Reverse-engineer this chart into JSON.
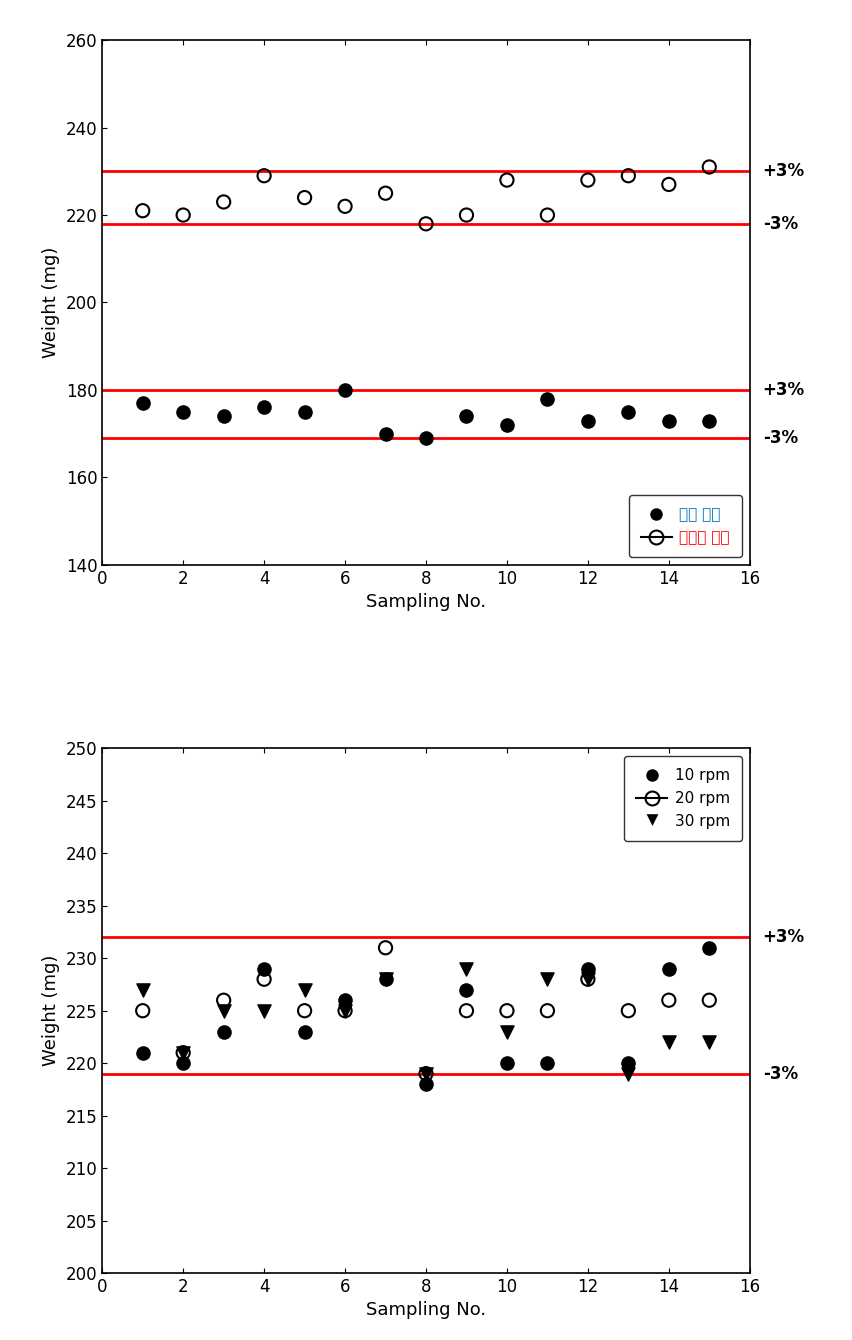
{
  "plot1": {
    "ylabel": "Weight (mg)",
    "xlabel": "Sampling No.",
    "ylim": [
      140,
      260
    ],
    "yticks": [
      140,
      160,
      180,
      200,
      220,
      240,
      260
    ],
    "xlim": [
      0,
      16
    ],
    "xticks": [
      0,
      2,
      4,
      6,
      8,
      10,
      12,
      14,
      16
    ],
    "hline_upper": 230,
    "hline_lower": 218,
    "hline_upper2": 180,
    "hline_lower2": 169,
    "series1_x": [
      1,
      2,
      3,
      4,
      5,
      6,
      7,
      8,
      9,
      10,
      11,
      12,
      13,
      14,
      15
    ],
    "series1_y": [
      177,
      175,
      174,
      176,
      175,
      180,
      170,
      169,
      174,
      172,
      178,
      173,
      175,
      173,
      173
    ],
    "series2_x": [
      1,
      2,
      3,
      4,
      5,
      6,
      7,
      8,
      9,
      10,
      11,
      12,
      13,
      14,
      15
    ],
    "series2_y": [
      221,
      220,
      223,
      229,
      224,
      222,
      225,
      218,
      220,
      228,
      220,
      228,
      229,
      227,
      231
    ],
    "label1": "알웈 저울",
    "label2": "동에물 저울"
  },
  "plot2": {
    "ylabel": "Weight (mg)",
    "xlabel": "Sampling No.",
    "ylim": [
      200,
      250
    ],
    "yticks": [
      200,
      205,
      210,
      215,
      220,
      225,
      230,
      235,
      240,
      245,
      250
    ],
    "xlim": [
      0,
      16
    ],
    "xticks": [
      0,
      2,
      4,
      6,
      8,
      10,
      12,
      14,
      16
    ],
    "hline_upper": 232,
    "hline_lower": 219,
    "series1_x": [
      1,
      2,
      3,
      4,
      5,
      6,
      7,
      8,
      9,
      10,
      11,
      12,
      13,
      14,
      15
    ],
    "series1_y": [
      221,
      220,
      223,
      229,
      223,
      226,
      228,
      218,
      227,
      220,
      220,
      229,
      220,
      229,
      231
    ],
    "series2_x": [
      1,
      2,
      3,
      4,
      5,
      6,
      7,
      8,
      9,
      10,
      11,
      12,
      13,
      14,
      15
    ],
    "series2_y": [
      225,
      221,
      226,
      228,
      225,
      225,
      231,
      219,
      225,
      225,
      225,
      228,
      225,
      226,
      226
    ],
    "series3_x": [
      1,
      2,
      3,
      4,
      5,
      6,
      7,
      8,
      9,
      10,
      11,
      12,
      13,
      14,
      15
    ],
    "series3_y": [
      227,
      221,
      225,
      225,
      227,
      225,
      228,
      219,
      229,
      223,
      228,
      228,
      219,
      222,
      222
    ],
    "label1": "10 rpm",
    "label2": "20 rpm",
    "label3": "30 rpm"
  }
}
